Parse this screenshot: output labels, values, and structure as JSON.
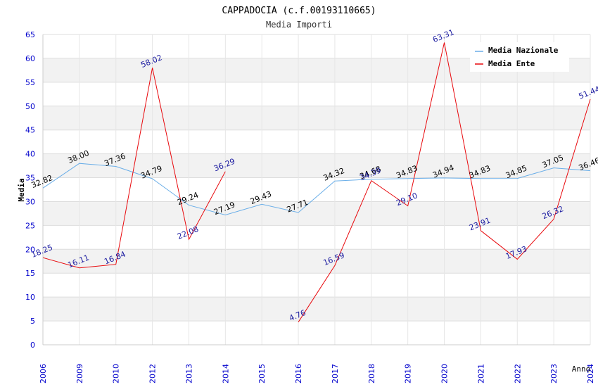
{
  "chart_data": {
    "type": "line",
    "title": "CAPPADOCIA (c.f.00193110665)",
    "subtitle": "Media Importi",
    "xlabel": "Anno",
    "ylabel": "Media",
    "ylim": [
      0,
      65
    ],
    "ytick_step": 5,
    "grid": true,
    "legend_position": "top-right",
    "categories": [
      "2006",
      "2009",
      "2010",
      "2012",
      "2013",
      "2014",
      "2015",
      "2016",
      "2017",
      "2018",
      "2019",
      "2020",
      "2021",
      "2022",
      "2023",
      "2024"
    ],
    "series": [
      {
        "name": "Media Nazionale",
        "color": "#6aaee8",
        "label_color": "#000000",
        "values": [
          32.82,
          38.0,
          37.36,
          34.79,
          29.24,
          27.19,
          29.43,
          27.71,
          34.32,
          34.68,
          34.83,
          34.94,
          34.83,
          34.85,
          37.05,
          36.46
        ],
        "labels": [
          "32.82",
          "38.00",
          "37.36",
          "34.79",
          "29.24",
          "27.19",
          "29.43",
          "27.71",
          "34.32",
          "34.68",
          "34.83",
          "34.94",
          "34.83",
          "34.85",
          "37.05",
          "36.46"
        ]
      },
      {
        "name": "Media Ente",
        "color": "#e8080c",
        "label_color": "#1a1aa0",
        "values": [
          18.25,
          16.11,
          16.84,
          58.02,
          22.08,
          36.29,
          null,
          4.76,
          16.59,
          34.39,
          29.1,
          63.31,
          23.91,
          17.93,
          26.32,
          51.44
        ],
        "labels": [
          "18.25",
          "16.11",
          "16.84",
          "58.02",
          "22.08",
          "36.29",
          null,
          "4.76",
          "16.59",
          "34.39",
          "29.10",
          "63.31",
          "23.91",
          "17.93",
          "26.32",
          "51.44"
        ]
      }
    ],
    "colors": {
      "axis_tick_text": "#0000cc",
      "band": "#f2f2f2",
      "grid": "#dddddd",
      "title_text": "#000000",
      "subtitle_text": "#333333"
    }
  }
}
